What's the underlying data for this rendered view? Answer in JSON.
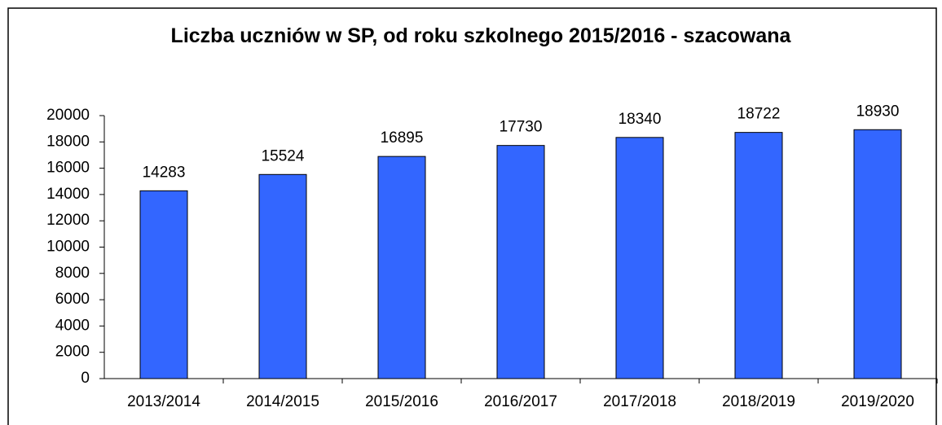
{
  "chart_data": {
    "type": "bar",
    "title": "Liczba uczniów w SP, od roku szkolnego 2015/2016 - szacowana",
    "categories": [
      "2013/2014",
      "2014/2015",
      "2015/2016",
      "2016/2017",
      "2017/2018",
      "2018/2019",
      "2019/2020"
    ],
    "values": [
      14283,
      15524,
      16895,
      17730,
      18340,
      18722,
      18930
    ],
    "color": "#3366ff",
    "ylim": [
      0,
      20000
    ],
    "yticks": [
      0,
      2000,
      4000,
      6000,
      8000,
      10000,
      12000,
      14000,
      16000,
      18000,
      20000
    ],
    "grid": false
  }
}
